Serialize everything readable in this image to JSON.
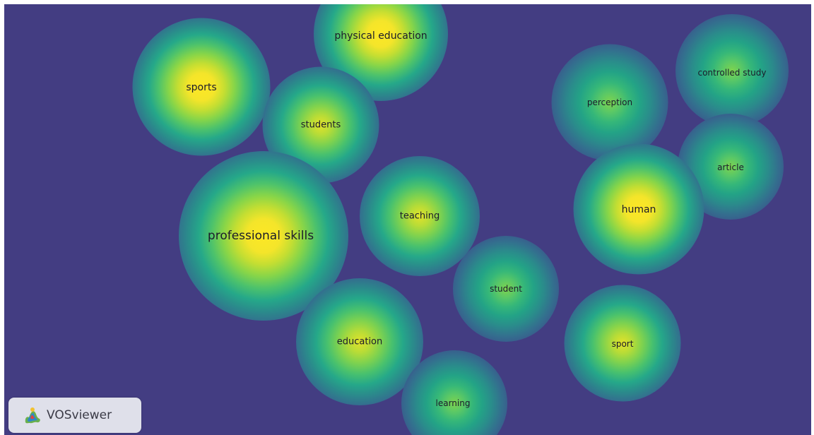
{
  "app": {
    "brand": "VOSviewer"
  },
  "colors": {
    "background": "#433d82",
    "density_high": "#fde725",
    "density_mid": "#35b779",
    "density_low": "#33708e"
  },
  "terms": {
    "physical_education": "physical education",
    "sports": "sports",
    "students": "students",
    "perception": "perception",
    "controlled_study": "controlled study",
    "article": "article",
    "teaching": "teaching",
    "human": "human",
    "professional_skills": "professional skills",
    "student": "student",
    "education": "education",
    "sport": "sport",
    "learning": "learning"
  }
}
